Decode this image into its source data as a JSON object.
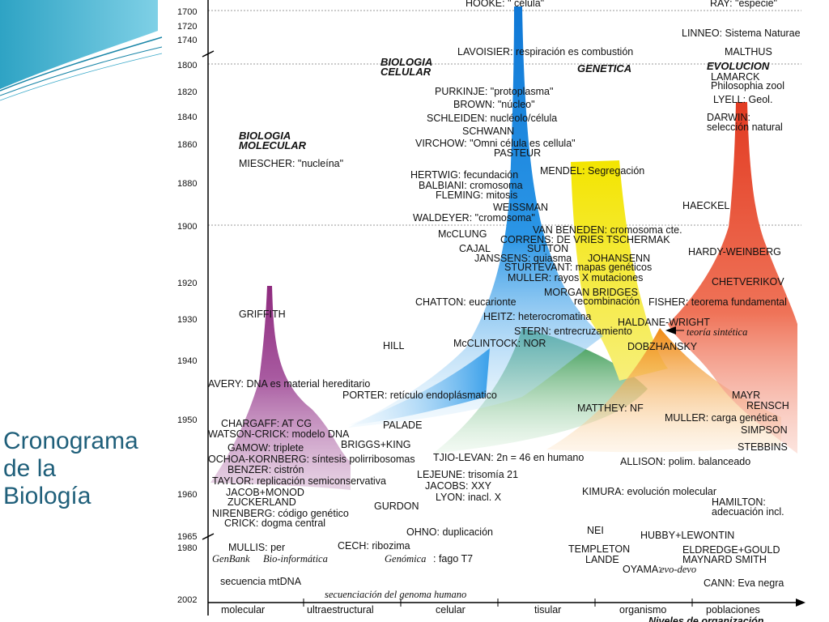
{
  "slide_title": [
    "Cronograma",
    "de la",
    "Biología"
  ],
  "year_ticks": [
    "1700",
    "1720",
    "1740",
    "1800",
    "1820",
    "1840",
    "1860",
    "1880",
    "1900",
    "1920",
    "1930",
    "1940",
    "1950",
    "1960",
    "1965",
    "1980",
    "2002"
  ],
  "levels": [
    "molecular",
    "ultraestructural",
    "celular",
    "tisular",
    "organismo",
    "poblaciones"
  ],
  "axis_title": "Niveles de organización",
  "headings": {
    "molecular": [
      "BIOLOGIA",
      "MOLECULAR"
    ],
    "celular": [
      "BIOLOGIA",
      "CELULAR"
    ],
    "genetica": "GENETICA",
    "evolucion": "EVOLUCION"
  },
  "labels": {
    "hooke": "HOOKE: \" célula\"",
    "ray": "RAY: \"especie\"",
    "linneo": "LINNEO: Sistema Naturae",
    "malthus": "MALTHUS",
    "lavoisier": "LAVOISIER: respiración es combustión",
    "lamarck": "LAMARCK",
    "philosophia": "Philosophia zool",
    "purkinje": "PURKINJE: \"protoplasma\"",
    "brown": "BROWN: \"núcleo\"",
    "lyell": "LYELL: Geol.",
    "schleiden": "SCHLEIDEN: nucléolo/célula",
    "darwin": "DARWIN:",
    "seleccion": "selección natural",
    "schwann": "SCHWANN",
    "virchow": "VIRCHOW: \"Omni célula es cellula\"",
    "pasteur": "PASTEUR",
    "miescher": "MIESCHER: \"nucleína\"",
    "mendel": "MENDEL: Segregación",
    "hertwig": "HERTWIG: fecundación",
    "balbiani": "BALBIANI: cromosoma",
    "fleming": "FLEMING: mitosis",
    "weissman": "WEISSMAN",
    "haeckel": "HAECKEL",
    "waldeyer": "WALDEYER: \"cromosoma\"",
    "van_beneden": "VAN BENEDEN: cromosoma cte.",
    "mcclung": "McCLUNG",
    "correns": "CORRENS: DE VRIES  TSCHERMAK",
    "cajal": "CAJAL",
    "sutton": "SUTTON",
    "hardy": "HARDY-WEINBERG",
    "janssens": "JANSSENS: quiasma",
    "johansenn": "JOHANSENN",
    "sturtevant": "STURTEVANT: mapas genéticos",
    "muller_rayos": "MULLER: rayos X mutaciones",
    "chetverikov": "CHETVERIKOV",
    "morgan": "MORGAN  BRIDGES",
    "recombinacion": "recombinación",
    "chatton": "CHATTON: eucarionte",
    "fisher": "FISHER: teorema fundamental",
    "griffith": "GRIFFITH",
    "heitz": "HEITZ: heterocromatina",
    "haldane": "HALDANE-WRIGHT",
    "stern": "STERN: entrecruzamiento",
    "teoria": "teoría sintética",
    "hill": "HILL",
    "mcclintock": "McCLINTOCK: NOR",
    "dobzhansky": "DOBZHANSKY",
    "avery": "AVERY: DNA es material hereditario",
    "mayr": "MAYR",
    "porter": "PORTER: retículo endoplásmatico",
    "rensch": "RENSCH",
    "matthey": "MATTHEY: NF",
    "muller_carga": "MULLER: carga genética",
    "chargaff": "CHARGAFF: AT CG",
    "palade": "PALADE",
    "simpson": "SIMPSON",
    "watson": "WATSON-CRICK: modelo DNA",
    "briggs": "BRIGGS+KING",
    "stebbins": "STEBBINS",
    "gamow": "GAMOW: triplete",
    "tjio": "TJIO-LEVAN: 2n = 46 en humano",
    "ochoa": "OCHOA-KORNBERG: síntesis polirribosomas",
    "allison": "ALLISON: polim. balanceado",
    "benzer": "BENZER: cistrón",
    "lejeune": "LEJEUNE: trisomía 21",
    "taylor": "TAYLOR: replicación semiconservativa",
    "jacobs": "JACOBS: XXY",
    "jacob": "JACOB+MONOD",
    "kimura": "KIMURA: evolución molecular",
    "zuckerland": "ZUCKERLAND",
    "lyon": "LYON: inacl. X",
    "hamilton": "HAMILTON:",
    "adecuacion": "adecuación incl.",
    "gurdon": "GURDON",
    "nirenberg": "NIRENBERG: código genético",
    "crick": "CRICK: dogma central",
    "nei": "NEI",
    "ohno": "OHNO: duplicación",
    "hubby": "HUBBY+LEWONTIN",
    "mullis": "MULLIS: per",
    "cech": "CECH: ribozima",
    "templeton": "TEMPLETON",
    "eldredge": "ELDREDGE+GOULD",
    "genbank": "GenBank",
    "bioinformatica": "Bio-informática",
    "genomica": "Genómica",
    "fago": ": fago T7",
    "lande": "LANDE",
    "maynard": "MAYNARD SMITH",
    "ohyama_a": "OYAMA:",
    "ohyama_b": "evo-devo",
    "mtdna": "secuencia mtDNA",
    "cann": "CANN: Eva negra",
    "genoma": "secuenciación del genoma humano"
  },
  "colors": {
    "molecular": "#8e2a7e",
    "celular": "#1a7fd4",
    "genetica": "#f2e400",
    "verde": "#1f8a3c",
    "naranja": "#f08d1a",
    "evolucion": "#e8452a",
    "titulo": "#1f5f7a",
    "teal": "#2fa8c8"
  }
}
